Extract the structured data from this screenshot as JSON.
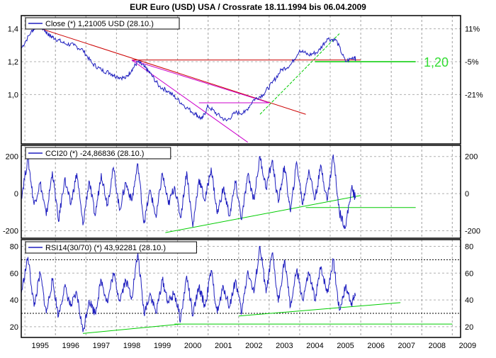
{
  "title": "EUR Euro (USD) USA / Crossrate 18.11.1994 bis 06.04.2009",
  "x_axis": {
    "tick_labels": [
      "1995",
      "1996",
      "1997",
      "1998",
      "1999",
      "2000",
      "2001",
      "2002",
      "2003",
      "2004",
      "2005",
      "2006",
      "2007",
      "2008",
      "2009"
    ],
    "range": [
      1994.88,
      2009.27
    ]
  },
  "chart_data": [
    {
      "type": "line",
      "panel": "price",
      "legend": "Close (*) 1,21005 USD (28.10.)",
      "ylim": [
        0.7,
        1.48
      ],
      "left_ticks": [
        "1,4",
        "1,2",
        "1,0"
      ],
      "left_tick_values": [
        1.4,
        1.2,
        1.0
      ],
      "right_ticks": [
        "11%",
        "-5%",
        "-21%"
      ],
      "right_tick_values": [
        1.4,
        1.2,
        1.0
      ],
      "annotation": "1,20",
      "annotation_value": 1.2,
      "colors": {
        "series": "#1f1fbf",
        "resistance": "#cc0000",
        "fan": "#cc00cc",
        "support": "#00cc00"
      },
      "x": [
        1994.88,
        1995.2,
        1995.4,
        1995.6,
        1995.8,
        1996.0,
        1996.3,
        1996.6,
        1996.9,
        1997.2,
        1997.5,
        1997.8,
        1998.0,
        1998.3,
        1998.5,
        1998.7,
        1998.9,
        1999.1,
        1999.4,
        1999.7,
        2000.0,
        2000.3,
        2000.6,
        2000.8,
        2001.0,
        2001.3,
        2001.6,
        2001.9,
        2002.2,
        2002.5,
        2002.8,
        2003.1,
        2003.4,
        2003.7,
        2004.0,
        2004.3,
        2004.6,
        2004.9,
        2005.2,
        2005.5,
        2005.8,
        2005.83
      ],
      "values": [
        1.28,
        1.38,
        1.42,
        1.4,
        1.36,
        1.34,
        1.31,
        1.3,
        1.27,
        1.19,
        1.15,
        1.13,
        1.11,
        1.1,
        1.15,
        1.2,
        1.17,
        1.13,
        1.05,
        1.02,
        0.97,
        0.92,
        0.88,
        0.85,
        0.93,
        0.88,
        0.84,
        0.89,
        0.89,
        0.97,
        1.0,
        1.07,
        1.15,
        1.18,
        1.27,
        1.24,
        1.26,
        1.34,
        1.33,
        1.2,
        1.23,
        1.21
      ],
      "trendlines": [
        {
          "kind": "resistance",
          "from": [
            1995.2,
            1.42
          ],
          "to": [
            2004.2,
            0.88
          ]
        },
        {
          "kind": "resistance",
          "from": [
            1998.5,
            1.21
          ],
          "to": [
            2006.0,
            1.21
          ]
        },
        {
          "kind": "fan",
          "from": [
            1998.5,
            1.21
          ],
          "to": [
            2002.3,
            0.71
          ]
        },
        {
          "kind": "fan",
          "from": [
            1998.5,
            1.21
          ],
          "to": [
            2003.0,
            0.95
          ]
        },
        {
          "kind": "fan",
          "from": [
            2000.7,
            0.95
          ],
          "to": [
            2003.0,
            0.95
          ]
        },
        {
          "kind": "support",
          "from": [
            2002.7,
            0.88
          ],
          "to": [
            2005.3,
            1.37
          ]
        },
        {
          "kind": "support",
          "from": [
            2004.5,
            1.2
          ],
          "to": [
            2007.8,
            1.2
          ]
        }
      ]
    },
    {
      "type": "line",
      "panel": "cci",
      "legend": "CCI20 (*) -24,86836 (28.10.)",
      "ylim": [
        -240,
        260
      ],
      "left_ticks": [
        "200",
        "0",
        "-200"
      ],
      "right_ticks": [
        "200",
        "0",
        "-200"
      ],
      "tick_values": [
        200,
        0,
        -200
      ],
      "colors": {
        "series": "#1f1fbf",
        "support": "#00cc00"
      },
      "x": [
        1994.88,
        1995.1,
        1995.3,
        1995.5,
        1995.7,
        1995.9,
        1996.1,
        1996.3,
        1996.5,
        1996.7,
        1996.9,
        1997.1,
        1997.3,
        1997.5,
        1997.7,
        1997.9,
        1998.1,
        1998.3,
        1998.5,
        1998.7,
        1998.9,
        1999.1,
        1999.3,
        1999.5,
        1999.7,
        1999.9,
        2000.1,
        2000.3,
        2000.5,
        2000.7,
        2000.9,
        2001.1,
        2001.3,
        2001.5,
        2001.7,
        2001.9,
        2002.1,
        2002.3,
        2002.5,
        2002.7,
        2002.9,
        2003.1,
        2003.3,
        2003.5,
        2003.7,
        2003.9,
        2004.1,
        2004.3,
        2004.5,
        2004.7,
        2004.9,
        2005.1,
        2005.3,
        2005.5,
        2005.7,
        2005.83
      ],
      "values": [
        -20,
        190,
        -60,
        60,
        -120,
        120,
        -150,
        80,
        -60,
        110,
        -170,
        70,
        -120,
        110,
        -60,
        140,
        -90,
        60,
        -40,
        160,
        -160,
        20,
        -130,
        110,
        -60,
        40,
        -130,
        120,
        -180,
        80,
        -40,
        140,
        -110,
        30,
        -120,
        60,
        -140,
        100,
        -30,
        200,
        30,
        180,
        -50,
        150,
        -100,
        170,
        -60,
        130,
        -30,
        150,
        -40,
        210,
        -100,
        -180,
        30,
        -25
      ],
      "trendlines": [
        {
          "kind": "support",
          "from": [
            1999.6,
            -210
          ],
          "to": [
            2006.0,
            -10
          ]
        },
        {
          "kind": "support",
          "from": [
            2004.2,
            -75
          ],
          "to": [
            2007.8,
            -75
          ]
        }
      ]
    },
    {
      "type": "line",
      "panel": "rsi",
      "legend": "RSI14(30/70) (*) 43,92281 (28.10.)",
      "ylim": [
        12,
        85
      ],
      "left_ticks": [
        "80",
        "60",
        "40",
        "20"
      ],
      "right_ticks": [
        "80",
        "60",
        "40",
        "20"
      ],
      "tick_values": [
        80,
        60,
        40,
        20
      ],
      "reference_levels": [
        30,
        70
      ],
      "colors": {
        "series": "#1f1fbf",
        "support": "#00cc00",
        "reference": "#000000"
      },
      "x": [
        1994.88,
        1995.1,
        1995.3,
        1995.5,
        1995.7,
        1995.9,
        1996.1,
        1996.3,
        1996.5,
        1996.7,
        1996.9,
        1997.1,
        1997.3,
        1997.5,
        1997.7,
        1997.9,
        1998.1,
        1998.3,
        1998.5,
        1998.7,
        1998.9,
        1999.1,
        1999.3,
        1999.5,
        1999.7,
        1999.9,
        2000.1,
        2000.3,
        2000.5,
        2000.7,
        2000.9,
        2001.1,
        2001.3,
        2001.5,
        2001.7,
        2001.9,
        2002.1,
        2002.3,
        2002.5,
        2002.7,
        2002.9,
        2003.1,
        2003.3,
        2003.5,
        2003.7,
        2003.9,
        2004.1,
        2004.3,
        2004.5,
        2004.7,
        2004.9,
        2005.1,
        2005.3,
        2005.5,
        2005.7,
        2005.83
      ],
      "values": [
        45,
        72,
        35,
        60,
        30,
        55,
        28,
        50,
        35,
        45,
        16,
        40,
        30,
        55,
        38,
        60,
        40,
        55,
        42,
        75,
        30,
        45,
        30,
        55,
        38,
        45,
        25,
        58,
        28,
        50,
        35,
        62,
        30,
        50,
        35,
        55,
        30,
        62,
        45,
        80,
        45,
        75,
        38,
        70,
        35,
        62,
        40,
        60,
        40,
        65,
        45,
        70,
        32,
        50,
        38,
        44
      ],
      "trendlines": [
        {
          "kind": "support",
          "from": [
            1996.9,
            15
          ],
          "to": [
            2000.1,
            22
          ]
        },
        {
          "kind": "support",
          "from": [
            1999.9,
            22
          ],
          "to": [
            2009.0,
            22
          ]
        },
        {
          "kind": "support",
          "from": [
            2002.0,
            28
          ],
          "to": [
            2007.3,
            38
          ]
        }
      ]
    }
  ]
}
